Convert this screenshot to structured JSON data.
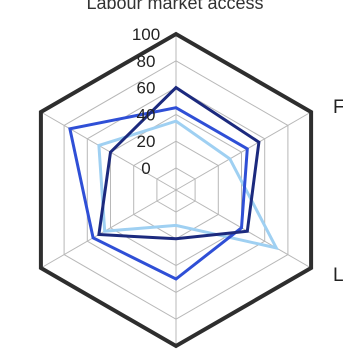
{
  "chart_data": {
    "type": "radar",
    "title": "Labour market access",
    "axes": [
      "F",
      "L",
      "",
      "",
      "",
      ""
    ],
    "rlim": [
      0,
      100
    ],
    "ticks": [
      0,
      20,
      40,
      60,
      80,
      100
    ],
    "grid": true,
    "series": [
      {
        "color": "#1c2a7e",
        "values": [
          55,
          45,
          20,
          50,
          40,
          60
        ]
      },
      {
        "color": "#2f4fd6",
        "values": [
          45,
          40,
          50,
          55,
          75,
          45
        ]
      },
      {
        "color": "#9fd0f2",
        "values": [
          30,
          70,
          10,
          45,
          50,
          35
        ]
      }
    ],
    "colors": {
      "outer_frame": "#2e2e2e",
      "grid": "#b8b8b8"
    }
  }
}
